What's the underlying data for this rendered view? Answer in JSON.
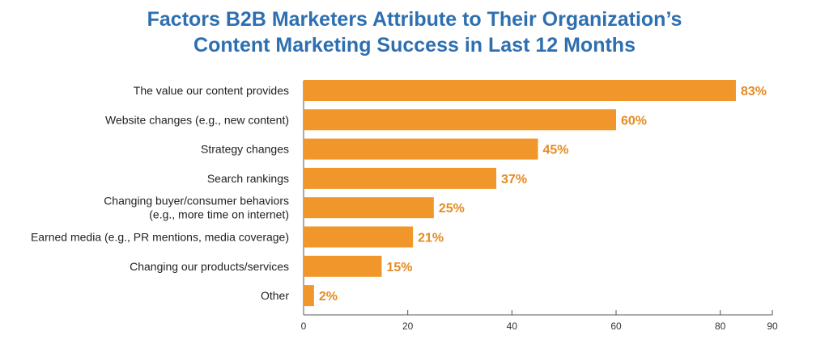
{
  "chart_data": {
    "type": "bar",
    "orientation": "horizontal",
    "title_lines": [
      "Factors B2B Marketers Attribute to Their Organization’s",
      "Content Marketing Success in Last 12 Months"
    ],
    "categories": [
      [
        "The value our content provides"
      ],
      [
        "Website changes (e.g., new content)"
      ],
      [
        "Strategy changes"
      ],
      [
        "Search rankings"
      ],
      [
        "Changing buyer/consumer behaviors",
        "(e.g., more time on internet)"
      ],
      [
        "Earned media (e.g., PR mentions, media coverage)"
      ],
      [
        "Changing our products/services"
      ],
      [
        "Other"
      ]
    ],
    "values": [
      83,
      60,
      45,
      37,
      25,
      21,
      15,
      2
    ],
    "value_labels": [
      "83%",
      "60%",
      "45%",
      "37%",
      "25%",
      "21%",
      "15%",
      "2%"
    ],
    "xlim": [
      0,
      90
    ],
    "xticks": [
      0,
      20,
      40,
      60,
      80,
      90
    ],
    "xlabel": "",
    "ylabel": "",
    "grid": false,
    "legend": "none"
  },
  "colors": {
    "title": "#2e6fb0",
    "bar": "#f0962a",
    "value_label": "#e58b22",
    "axis": "#555555"
  }
}
